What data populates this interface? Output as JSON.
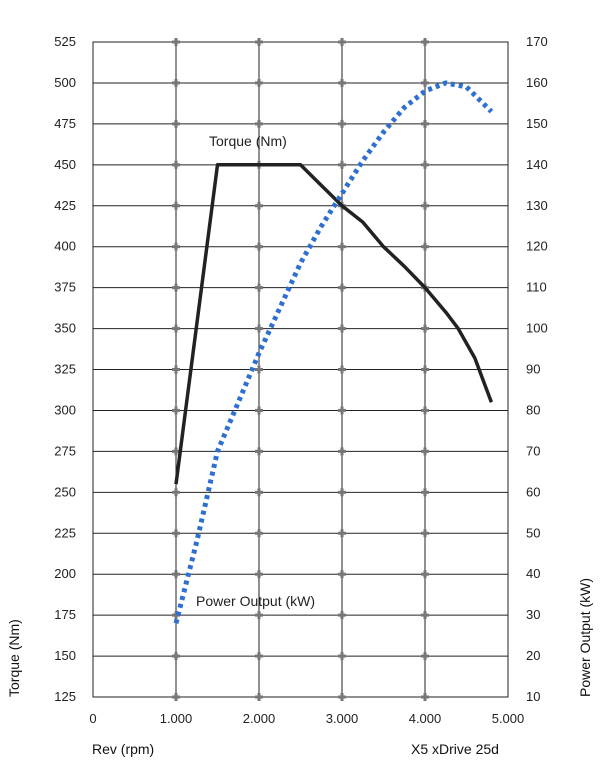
{
  "chart_data": {
    "type": "line",
    "x_label": "Rev (rpm)",
    "y_left_label": "Torque (Nm)",
    "y_right_label": "Power Output (kW)",
    "caption": "X5 xDrive 25d",
    "x_range": [
      0,
      5000
    ],
    "x_ticks": [
      {
        "value": 0,
        "label": "0"
      },
      {
        "value": 1000,
        "label": "1.000"
      },
      {
        "value": 2000,
        "label": "2.000"
      },
      {
        "value": 3000,
        "label": "3.000"
      },
      {
        "value": 4000,
        "label": "4.000"
      },
      {
        "value": 5000,
        "label": "5.000"
      }
    ],
    "y_left_range": [
      125,
      525
    ],
    "y_left_ticks": [
      "125",
      "150",
      "175",
      "200",
      "225",
      "250",
      "275",
      "300",
      "325",
      "350",
      "375",
      "400",
      "425",
      "450",
      "475",
      "500",
      "525"
    ],
    "y_right_range": [
      10,
      170
    ],
    "y_right_ticks": [
      "10",
      "20",
      "30",
      "40",
      "50",
      "60",
      "70",
      "80",
      "90",
      "100",
      "110",
      "120",
      "130",
      "140",
      "150",
      "160",
      "170"
    ],
    "grid": true,
    "series": [
      {
        "name": "Torque (Nm)",
        "axis": "left",
        "style": "solid",
        "color": "#222222",
        "points": [
          [
            1000,
            255
          ],
          [
            1500,
            450
          ],
          [
            2500,
            450
          ],
          [
            2700,
            440
          ],
          [
            3000,
            425
          ],
          [
            3250,
            415
          ],
          [
            3500,
            400
          ],
          [
            3750,
            388
          ],
          [
            4000,
            375
          ],
          [
            4250,
            360
          ],
          [
            4400,
            350
          ],
          [
            4600,
            332
          ],
          [
            4800,
            305
          ]
        ]
      },
      {
        "name": "Power Output (kW)",
        "axis": "right",
        "style": "dotted",
        "color": "#2e6fd0",
        "points": [
          [
            1000,
            28
          ],
          [
            1250,
            48
          ],
          [
            1500,
            70
          ],
          [
            1750,
            82
          ],
          [
            2000,
            94
          ],
          [
            2250,
            105
          ],
          [
            2500,
            116
          ],
          [
            2750,
            125
          ],
          [
            3000,
            133
          ],
          [
            3250,
            141
          ],
          [
            3500,
            148
          ],
          [
            3750,
            154
          ],
          [
            4000,
            158
          ],
          [
            4250,
            160
          ],
          [
            4500,
            159
          ],
          [
            4650,
            156
          ],
          [
            4800,
            153
          ]
        ]
      }
    ]
  }
}
